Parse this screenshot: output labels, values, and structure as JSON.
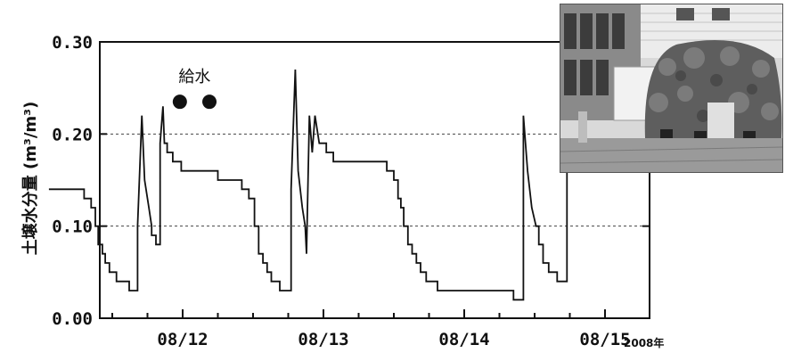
{
  "chart_data": {
    "type": "line",
    "ylabel": "土壌水分量 (m³/m³)",
    "year_note": "2008年",
    "ylim": [
      0,
      0.3
    ],
    "yticks": [
      "0.00",
      "0.10",
      "0.20",
      "0.30"
    ],
    "xlim": [
      0,
      4.0
    ],
    "xticks": [
      {
        "label": "08/12",
        "x": 1.0
      },
      {
        "label": "08/13",
        "x": 2.0
      },
      {
        "label": "08/14",
        "x": 3.0
      },
      {
        "label": "08/15",
        "x": 4.0
      }
    ],
    "dashed_gridlines_y": [
      0.1,
      0.2
    ],
    "annotation": {
      "text": "給水",
      "marker_x": [
        0.98,
        1.19
      ],
      "marker_y": 0.235
    },
    "series": [
      {
        "points": [
          [
            0.05,
            0.14
          ],
          [
            0.3,
            0.14
          ],
          [
            0.3,
            0.13
          ],
          [
            0.35,
            0.13
          ],
          [
            0.35,
            0.12
          ],
          [
            0.38,
            0.12
          ],
          [
            0.38,
            0.1
          ],
          [
            0.4,
            0.1
          ],
          [
            0.4,
            0.08
          ],
          [
            0.43,
            0.08
          ],
          [
            0.43,
            0.07
          ],
          [
            0.45,
            0.07
          ],
          [
            0.45,
            0.06
          ],
          [
            0.48,
            0.06
          ],
          [
            0.48,
            0.05
          ],
          [
            0.53,
            0.05
          ],
          [
            0.53,
            0.04
          ],
          [
            0.62,
            0.04
          ],
          [
            0.62,
            0.03
          ],
          [
            0.68,
            0.03
          ],
          [
            0.68,
            0.1
          ],
          [
            0.71,
            0.22
          ],
          [
            0.73,
            0.15
          ],
          [
            0.76,
            0.12
          ],
          [
            0.78,
            0.1
          ],
          [
            0.78,
            0.09
          ],
          [
            0.81,
            0.09
          ],
          [
            0.81,
            0.08
          ],
          [
            0.84,
            0.08
          ],
          [
            0.84,
            0.19
          ],
          [
            0.86,
            0.23
          ],
          [
            0.87,
            0.19
          ],
          [
            0.89,
            0.19
          ],
          [
            0.89,
            0.18
          ],
          [
            0.93,
            0.18
          ],
          [
            0.93,
            0.17
          ],
          [
            0.99,
            0.17
          ],
          [
            0.99,
            0.16
          ],
          [
            1.25,
            0.16
          ],
          [
            1.25,
            0.15
          ],
          [
            1.42,
            0.15
          ],
          [
            1.42,
            0.14
          ],
          [
            1.47,
            0.14
          ],
          [
            1.47,
            0.13
          ],
          [
            1.51,
            0.13
          ],
          [
            1.51,
            0.1
          ],
          [
            1.54,
            0.1
          ],
          [
            1.54,
            0.07
          ],
          [
            1.57,
            0.07
          ],
          [
            1.57,
            0.06
          ],
          [
            1.6,
            0.06
          ],
          [
            1.6,
            0.05
          ],
          [
            1.63,
            0.05
          ],
          [
            1.63,
            0.04
          ],
          [
            1.69,
            0.04
          ],
          [
            1.69,
            0.03
          ],
          [
            1.77,
            0.03
          ],
          [
            1.77,
            0.14
          ],
          [
            1.8,
            0.27
          ],
          [
            1.82,
            0.16
          ],
          [
            1.85,
            0.12
          ],
          [
            1.87,
            0.1
          ],
          [
            1.88,
            0.07
          ],
          [
            1.9,
            0.22
          ],
          [
            1.92,
            0.18
          ],
          [
            1.94,
            0.22
          ],
          [
            1.96,
            0.2
          ],
          [
            1.97,
            0.19
          ],
          [
            2.02,
            0.19
          ],
          [
            2.02,
            0.18
          ],
          [
            2.07,
            0.18
          ],
          [
            2.07,
            0.17
          ],
          [
            2.45,
            0.17
          ],
          [
            2.45,
            0.16
          ],
          [
            2.5,
            0.16
          ],
          [
            2.5,
            0.15
          ],
          [
            2.53,
            0.15
          ],
          [
            2.53,
            0.13
          ],
          [
            2.55,
            0.13
          ],
          [
            2.55,
            0.12
          ],
          [
            2.57,
            0.12
          ],
          [
            2.57,
            0.1
          ],
          [
            2.6,
            0.1
          ],
          [
            2.6,
            0.08
          ],
          [
            2.63,
            0.08
          ],
          [
            2.63,
            0.07
          ],
          [
            2.66,
            0.07
          ],
          [
            2.66,
            0.06
          ],
          [
            2.69,
            0.06
          ],
          [
            2.69,
            0.05
          ],
          [
            2.73,
            0.05
          ],
          [
            2.73,
            0.04
          ],
          [
            2.81,
            0.04
          ],
          [
            2.81,
            0.03
          ],
          [
            3.35,
            0.03
          ],
          [
            3.35,
            0.02
          ],
          [
            3.42,
            0.02
          ],
          [
            3.42,
            0.22
          ],
          [
            3.45,
            0.16
          ],
          [
            3.48,
            0.12
          ],
          [
            3.51,
            0.1
          ],
          [
            3.53,
            0.1
          ],
          [
            3.53,
            0.08
          ],
          [
            3.56,
            0.08
          ],
          [
            3.56,
            0.06
          ],
          [
            3.6,
            0.06
          ],
          [
            3.6,
            0.05
          ],
          [
            3.66,
            0.05
          ],
          [
            3.66,
            0.04
          ],
          [
            3.73,
            0.04
          ],
          [
            3.73,
            0.2
          ],
          [
            3.8,
            0.2
          ],
          [
            3.8,
            0.16
          ],
          [
            3.85,
            0.16
          ]
        ]
      }
    ]
  },
  "photo": {
    "description_icon": "photo-of-green-wall-house-icon"
  }
}
